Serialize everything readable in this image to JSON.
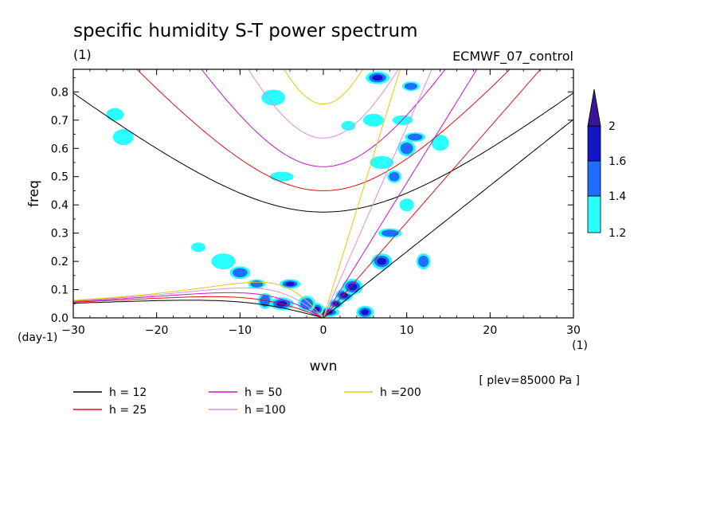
{
  "chart_data": {
    "type": "heatmap",
    "title": "specific humidity S-T power spectrum",
    "subtitle_left": "(1)",
    "subtitle_right": "ECMWF_07_control",
    "xlabel": "wvn",
    "ylabel": "freq",
    "x_unit": "(1)",
    "y_unit": "(day-1)",
    "level_note": "[ plev=85000 Pa ]",
    "xlim": [
      -30,
      30
    ],
    "ylim": [
      0,
      0.88
    ],
    "x_ticks": [
      -30,
      -20,
      -10,
      0,
      10,
      20,
      30
    ],
    "y_ticks": [
      0.0,
      0.1,
      0.2,
      0.3,
      0.4,
      0.5,
      0.6,
      0.7,
      0.8
    ],
    "colorbar": {
      "levels": [
        1.2,
        1.4,
        1.6,
        2
      ],
      "colors": [
        "#2affff",
        "#1e6eff",
        "#1414c8",
        "#3c1496"
      ]
    },
    "dispersion_curves": [
      {
        "label": "h = 12",
        "h": 12,
        "color": "#000000"
      },
      {
        "label": "h = 25",
        "h": 25,
        "color": "#e01010"
      },
      {
        "label": "h = 50",
        "h": 50,
        "color": "#c814c8"
      },
      {
        "label": "h =100",
        "h": 100,
        "color": "#d890d8"
      },
      {
        "label": "h =200",
        "h": 200,
        "color": "#e6c814"
      }
    ],
    "power_blobs": [
      {
        "x": 1.5,
        "y": 0.05,
        "level": 2
      },
      {
        "x": 2.5,
        "y": 0.08,
        "level": 2
      },
      {
        "x": 3.5,
        "y": 0.11,
        "level": 1.6
      },
      {
        "x": 0.5,
        "y": 0.02,
        "level": 1.6
      },
      {
        "x": -0.8,
        "y": 0.03,
        "level": 1.6
      },
      {
        "x": -2,
        "y": 0.05,
        "level": 1.4
      },
      {
        "x": -4,
        "y": 0.12,
        "level": 1.6
      },
      {
        "x": -5,
        "y": 0.05,
        "level": 2
      },
      {
        "x": -7,
        "y": 0.06,
        "level": 1.4
      },
      {
        "x": -8,
        "y": 0.12,
        "level": 1.4
      },
      {
        "x": -10,
        "y": 0.16,
        "level": 1.4
      },
      {
        "x": -12,
        "y": 0.2,
        "level": 1.2
      },
      {
        "x": -15,
        "y": 0.25,
        "level": 1.2
      },
      {
        "x": 5,
        "y": 0.02,
        "level": 1.6
      },
      {
        "x": 7,
        "y": 0.2,
        "level": 1.6
      },
      {
        "x": 8,
        "y": 0.3,
        "level": 1.4
      },
      {
        "x": 8.5,
        "y": 0.5,
        "level": 1.4
      },
      {
        "x": 10,
        "y": 0.6,
        "level": 1.4
      },
      {
        "x": 11,
        "y": 0.64,
        "level": 1.4
      },
      {
        "x": 7,
        "y": 0.55,
        "level": 1.2
      },
      {
        "x": 12,
        "y": 0.2,
        "level": 1.4
      },
      {
        "x": 10.5,
        "y": 0.82,
        "level": 1.4
      },
      {
        "x": 6,
        "y": 0.7,
        "level": 1.2
      },
      {
        "x": -6,
        "y": 0.78,
        "level": 1.2
      },
      {
        "x": 3,
        "y": 0.68,
        "level": 1.2
      },
      {
        "x": -25,
        "y": 0.72,
        "level": 1.2
      },
      {
        "x": -24,
        "y": 0.64,
        "level": 1.2
      },
      {
        "x": -5,
        "y": 0.5,
        "level": 1.2
      },
      {
        "x": 10,
        "y": 0.4,
        "level": 1.2
      },
      {
        "x": 14,
        "y": 0.62,
        "level": 1.2
      },
      {
        "x": 9.5,
        "y": 0.7,
        "level": 1.2
      },
      {
        "x": 6.5,
        "y": 0.85,
        "level": 1.6
      }
    ]
  }
}
